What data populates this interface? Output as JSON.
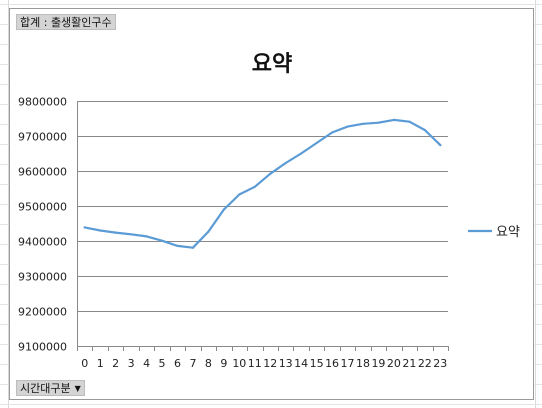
{
  "report_filter": {
    "label": "합계 : 출생활인구수"
  },
  "axis_field": {
    "label": "시간대구분"
  },
  "colors": {
    "series_line": "#5b9bd5",
    "gridline": "#898989",
    "axis": "#898989"
  },
  "chart_data": {
    "type": "line",
    "title": "요약",
    "xlabel": "",
    "ylabel": "",
    "categories": [
      "0",
      "1",
      "2",
      "3",
      "4",
      "5",
      "6",
      "7",
      "8",
      "9",
      "10",
      "11",
      "12",
      "13",
      "14",
      "15",
      "16",
      "17",
      "18",
      "19",
      "20",
      "21",
      "22",
      "23"
    ],
    "ylim": [
      9100000,
      9800000
    ],
    "y_ticks": [
      9100000,
      9200000,
      9300000,
      9400000,
      9500000,
      9600000,
      9700000,
      9800000
    ],
    "y_tick_labels": [
      "9100000",
      "9200000",
      "9300000",
      "9400000",
      "9500000",
      "9600000",
      "9700000",
      "9800000"
    ],
    "grid": true,
    "legend": "right",
    "series": [
      {
        "name": "요약",
        "values": [
          9439000,
          9430000,
          9424000,
          9419000,
          9413000,
          9401000,
          9386000,
          9381000,
          9427000,
          9490000,
          9533000,
          9555000,
          9592000,
          9623000,
          9650000,
          9680000,
          9710000,
          9727000,
          9735000,
          9738000,
          9746000,
          9741000,
          9717000,
          9674000
        ]
      }
    ]
  }
}
